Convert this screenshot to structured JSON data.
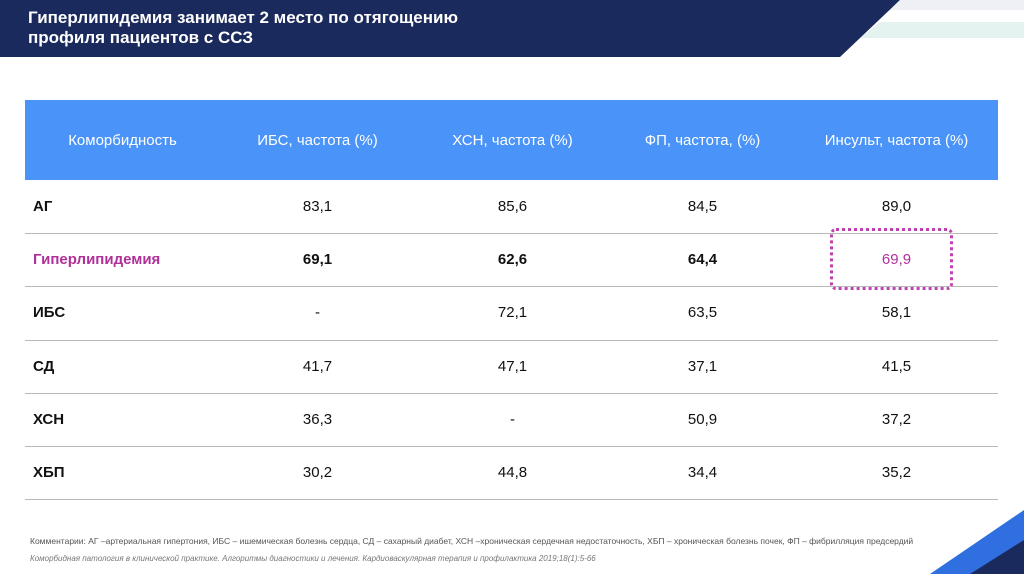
{
  "header": {
    "title": "Гиперлипидемия занимает 2 место по отягощению профиля пациентов с ССЗ"
  },
  "table": {
    "columns": [
      "Коморбидность",
      "ИБС, частота (%)",
      "ХСН, частота (%)",
      "ФП, частота, (%)",
      "Инсульт, частота (%)"
    ],
    "rows": [
      [
        "АГ",
        "83,1",
        "85,6",
        "84,5",
        "89,0"
      ],
      [
        "Гиперлипидемия",
        "69,1",
        "62,6",
        "64,4",
        "69,9"
      ],
      [
        "ИБС",
        "-",
        "72,1",
        "63,5",
        "58,1"
      ],
      [
        "СД",
        "41,7",
        "47,1",
        "37,1",
        "41,5"
      ],
      [
        "ХСН",
        "36,3",
        "-",
        "50,9",
        "37,2"
      ],
      [
        "ХБП",
        "30,2",
        "44,8",
        "34,4",
        "35,2"
      ]
    ]
  },
  "footnotes": {
    "comment": "Комментарии: АГ –артериальная гипертония, ИБС – ишемическая болезнь сердца, СД – сахарный диабет, ХСН –хроническая сердечная недостаточность, ХБП – хроническая болезнь почек, ФП – фибрилляция предсердий",
    "source": "Коморбидная патология в клинической практике. Алгоритмы диагностики и лечения. Кардиоваскулярная терапия и профилактика 2019;18(1):5-66"
  }
}
